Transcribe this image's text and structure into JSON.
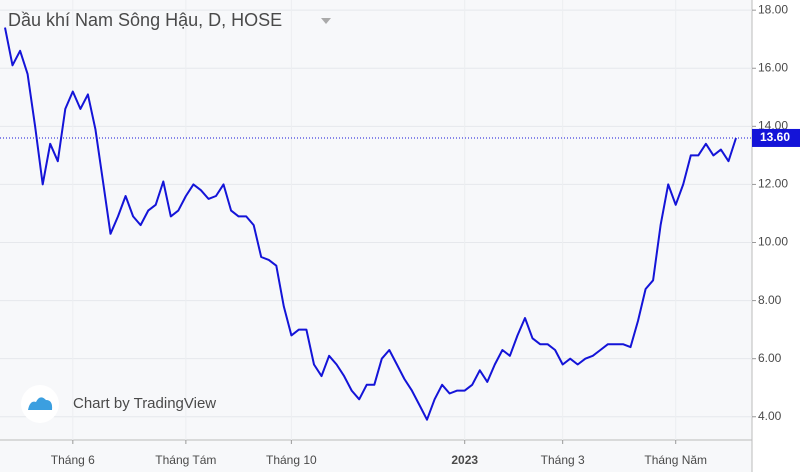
{
  "chart_data": {
    "type": "line",
    "title": "Dầu khí Nam Sông Hậu, D, HOSE",
    "watermark": "Chart by TradingView",
    "series": [
      {
        "color": "#1414d8",
        "values": [
          17.4,
          16.1,
          16.6,
          15.8,
          14.0,
          12.0,
          13.4,
          12.8,
          14.6,
          15.2,
          14.6,
          15.1,
          13.9,
          12.1,
          10.3,
          10.9,
          11.6,
          10.9,
          10.6,
          11.1,
          11.3,
          12.1,
          10.9,
          11.1,
          11.6,
          12.0,
          11.8,
          11.5,
          11.6,
          12.0,
          11.1,
          10.9,
          10.9,
          10.6,
          9.5,
          9.4,
          9.2,
          7.8,
          6.8,
          7.0,
          7.0,
          5.8,
          5.4,
          6.1,
          5.8,
          5.4,
          4.9,
          4.6,
          5.1,
          5.1,
          6.0,
          6.3,
          5.8,
          5.3,
          4.9,
          4.4,
          3.9,
          4.6,
          5.1,
          4.8,
          4.9,
          4.9,
          5.1,
          5.6,
          5.2,
          5.8,
          6.3,
          6.1,
          6.8,
          7.4,
          6.7,
          6.5,
          6.5,
          6.3,
          5.8,
          6.0,
          5.8,
          6.0,
          6.1,
          6.3,
          6.5,
          6.5,
          6.5,
          6.4,
          7.3,
          8.4,
          8.7,
          10.6,
          12.0,
          11.3,
          12.0,
          13.0,
          13.0,
          13.4,
          13.0,
          13.2,
          12.8,
          13.6
        ]
      }
    ],
    "price_line": {
      "value": 13.6,
      "label": "13.60",
      "color": "#1414d8"
    },
    "xlim": [
      0,
      97
    ],
    "xticks": [
      {
        "value": 9,
        "label": "Tháng 6"
      },
      {
        "value": 24,
        "label": "Tháng Tám"
      },
      {
        "value": 38,
        "label": "Tháng 10"
      },
      {
        "value": 61,
        "label": "2023"
      },
      {
        "value": 74,
        "label": "Tháng 3"
      },
      {
        "value": 89,
        "label": "Tháng Năm"
      }
    ],
    "ylim": [
      3.2,
      18.35
    ],
    "yticks": [
      {
        "value": 4,
        "label": "4.00"
      },
      {
        "value": 6,
        "label": "6.00"
      },
      {
        "value": 8,
        "label": "8.00"
      },
      {
        "value": 10,
        "label": "10.00"
      },
      {
        "value": 12,
        "label": "12.00"
      },
      {
        "value": 14,
        "label": "14.00"
      },
      {
        "value": 16,
        "label": "16.00"
      },
      {
        "value": 18,
        "label": "18.00"
      }
    ],
    "grid": true
  }
}
